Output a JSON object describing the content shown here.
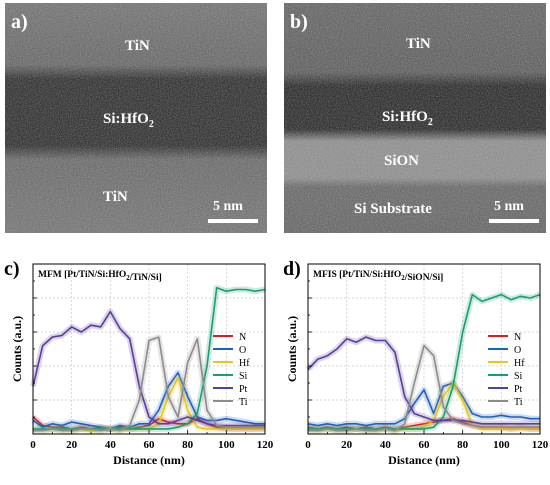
{
  "panels": {
    "a": {
      "tag": "a)",
      "top_layer": "TiN",
      "middle_layer": "Si:HfO",
      "middle_sub": "2",
      "bottom_layer": "TiN",
      "scale": "5 nm"
    },
    "b": {
      "tag": "b)",
      "top_layer": "TiN",
      "middle_layer": "Si:HfO",
      "middle_sub": "2",
      "interlayer": "SiON",
      "substrate": "Si Substrate",
      "scale": "5 nm"
    }
  },
  "chart_data": [
    {
      "type": "line",
      "panel_tag": "c)",
      "title": "MFM [Pt/TiN/Si:HfO2/TiN/Si]",
      "xlabel": "Distance (nm)",
      "ylabel": "Counts (a.u.)",
      "xlim": [
        0,
        120
      ],
      "ylim": [
        0,
        100
      ],
      "xticks": [
        "0",
        "20",
        "40",
        "60",
        "80",
        "100",
        "120"
      ],
      "grid": true,
      "legend_position": "right",
      "x": [
        0,
        5,
        10,
        15,
        20,
        25,
        30,
        35,
        40,
        45,
        50,
        55,
        60,
        65,
        70,
        75,
        80,
        85,
        90,
        95,
        100,
        105,
        110,
        115,
        120
      ],
      "series": [
        {
          "name": "N",
          "color": "#d62020",
          "values": [
            10,
            5,
            4,
            4,
            3,
            4,
            3,
            4,
            3,
            4,
            3,
            4,
            5,
            9,
            7,
            6,
            6,
            9,
            6,
            4,
            3,
            3,
            3,
            3,
            3
          ]
        },
        {
          "name": "O",
          "color": "#1f5fbf",
          "values": [
            8,
            4,
            6,
            5,
            7,
            6,
            5,
            4,
            3,
            5,
            4,
            6,
            6,
            14,
            28,
            36,
            22,
            10,
            8,
            8,
            9,
            8,
            7,
            6,
            6
          ]
        },
        {
          "name": "Hf",
          "color": "#e6c619",
          "values": [
            3,
            2,
            3,
            2,
            2,
            3,
            2,
            2,
            3,
            2,
            3,
            3,
            3,
            6,
            22,
            33,
            14,
            4,
            3,
            3,
            3,
            3,
            3,
            3,
            3
          ]
        },
        {
          "name": "Si",
          "color": "#1a9e6e",
          "values": [
            3,
            3,
            3,
            3,
            3,
            3,
            3,
            3,
            3,
            3,
            3,
            3,
            3,
            3,
            3,
            4,
            6,
            12,
            40,
            86,
            84,
            85,
            85,
            84,
            85
          ]
        },
        {
          "name": "Pt",
          "color": "#5a3d9c",
          "values": [
            28,
            52,
            57,
            58,
            63,
            60,
            64,
            63,
            72,
            62,
            56,
            28,
            10,
            6,
            6,
            8,
            10,
            8,
            6,
            5,
            5,
            5,
            5,
            5,
            5
          ]
        },
        {
          "name": "Ti",
          "color": "#8c8c8c",
          "values": [
            2,
            2,
            3,
            2,
            2,
            3,
            3,
            2,
            3,
            2,
            5,
            20,
            55,
            57,
            22,
            10,
            42,
            56,
            14,
            5,
            4,
            4,
            4,
            4,
            4
          ]
        }
      ]
    },
    {
      "type": "line",
      "panel_tag": "d)",
      "title": "MFIS [Pt/TiN/Si:HfO2/SiON/Si]",
      "xlabel": "Distance (nm)",
      "ylabel": "Counts (a.u.)",
      "xlim": [
        0,
        120
      ],
      "ylim": [
        0,
        100
      ],
      "xticks": [
        "0",
        "20",
        "40",
        "60",
        "80",
        "100",
        "120"
      ],
      "grid": true,
      "legend_position": "right",
      "x": [
        0,
        5,
        10,
        15,
        20,
        25,
        30,
        35,
        40,
        45,
        50,
        55,
        60,
        65,
        70,
        75,
        80,
        85,
        90,
        95,
        100,
        105,
        110,
        115,
        120
      ],
      "series": [
        {
          "name": "N",
          "color": "#d62020",
          "values": [
            4,
            3,
            4,
            3,
            4,
            3,
            4,
            3,
            4,
            3,
            4,
            5,
            6,
            7,
            8,
            9,
            7,
            5,
            4,
            4,
            4,
            3,
            4,
            3,
            3
          ]
        },
        {
          "name": "O",
          "color": "#1f5fbf",
          "values": [
            6,
            5,
            6,
            5,
            6,
            6,
            5,
            6,
            6,
            6,
            9,
            18,
            26,
            12,
            28,
            30,
            22,
            12,
            10,
            10,
            11,
            10,
            10,
            9,
            9
          ]
        },
        {
          "name": "Hf",
          "color": "#e6c619",
          "values": [
            3,
            2,
            3,
            2,
            2,
            3,
            2,
            2,
            3,
            2,
            3,
            3,
            4,
            8,
            22,
            30,
            20,
            5,
            3,
            3,
            3,
            3,
            3,
            3,
            3
          ]
        },
        {
          "name": "Si",
          "color": "#1a9e6e",
          "values": [
            3,
            3,
            3,
            3,
            3,
            3,
            3,
            3,
            3,
            3,
            3,
            3,
            3,
            4,
            10,
            28,
            60,
            82,
            78,
            80,
            82,
            79,
            81,
            80,
            82
          ]
        },
        {
          "name": "Pt",
          "color": "#5a3d9c",
          "values": [
            38,
            44,
            46,
            50,
            56,
            54,
            57,
            55,
            55,
            48,
            22,
            12,
            10,
            8,
            8,
            8,
            8,
            7,
            6,
            6,
            6,
            6,
            6,
            6,
            6
          ]
        },
        {
          "name": "Ti",
          "color": "#8c8c8c",
          "values": [
            2,
            2,
            3,
            2,
            2,
            3,
            2,
            2,
            3,
            2,
            6,
            30,
            52,
            46,
            16,
            8,
            6,
            5,
            4,
            4,
            4,
            4,
            4,
            4,
            4
          ]
        }
      ]
    }
  ]
}
